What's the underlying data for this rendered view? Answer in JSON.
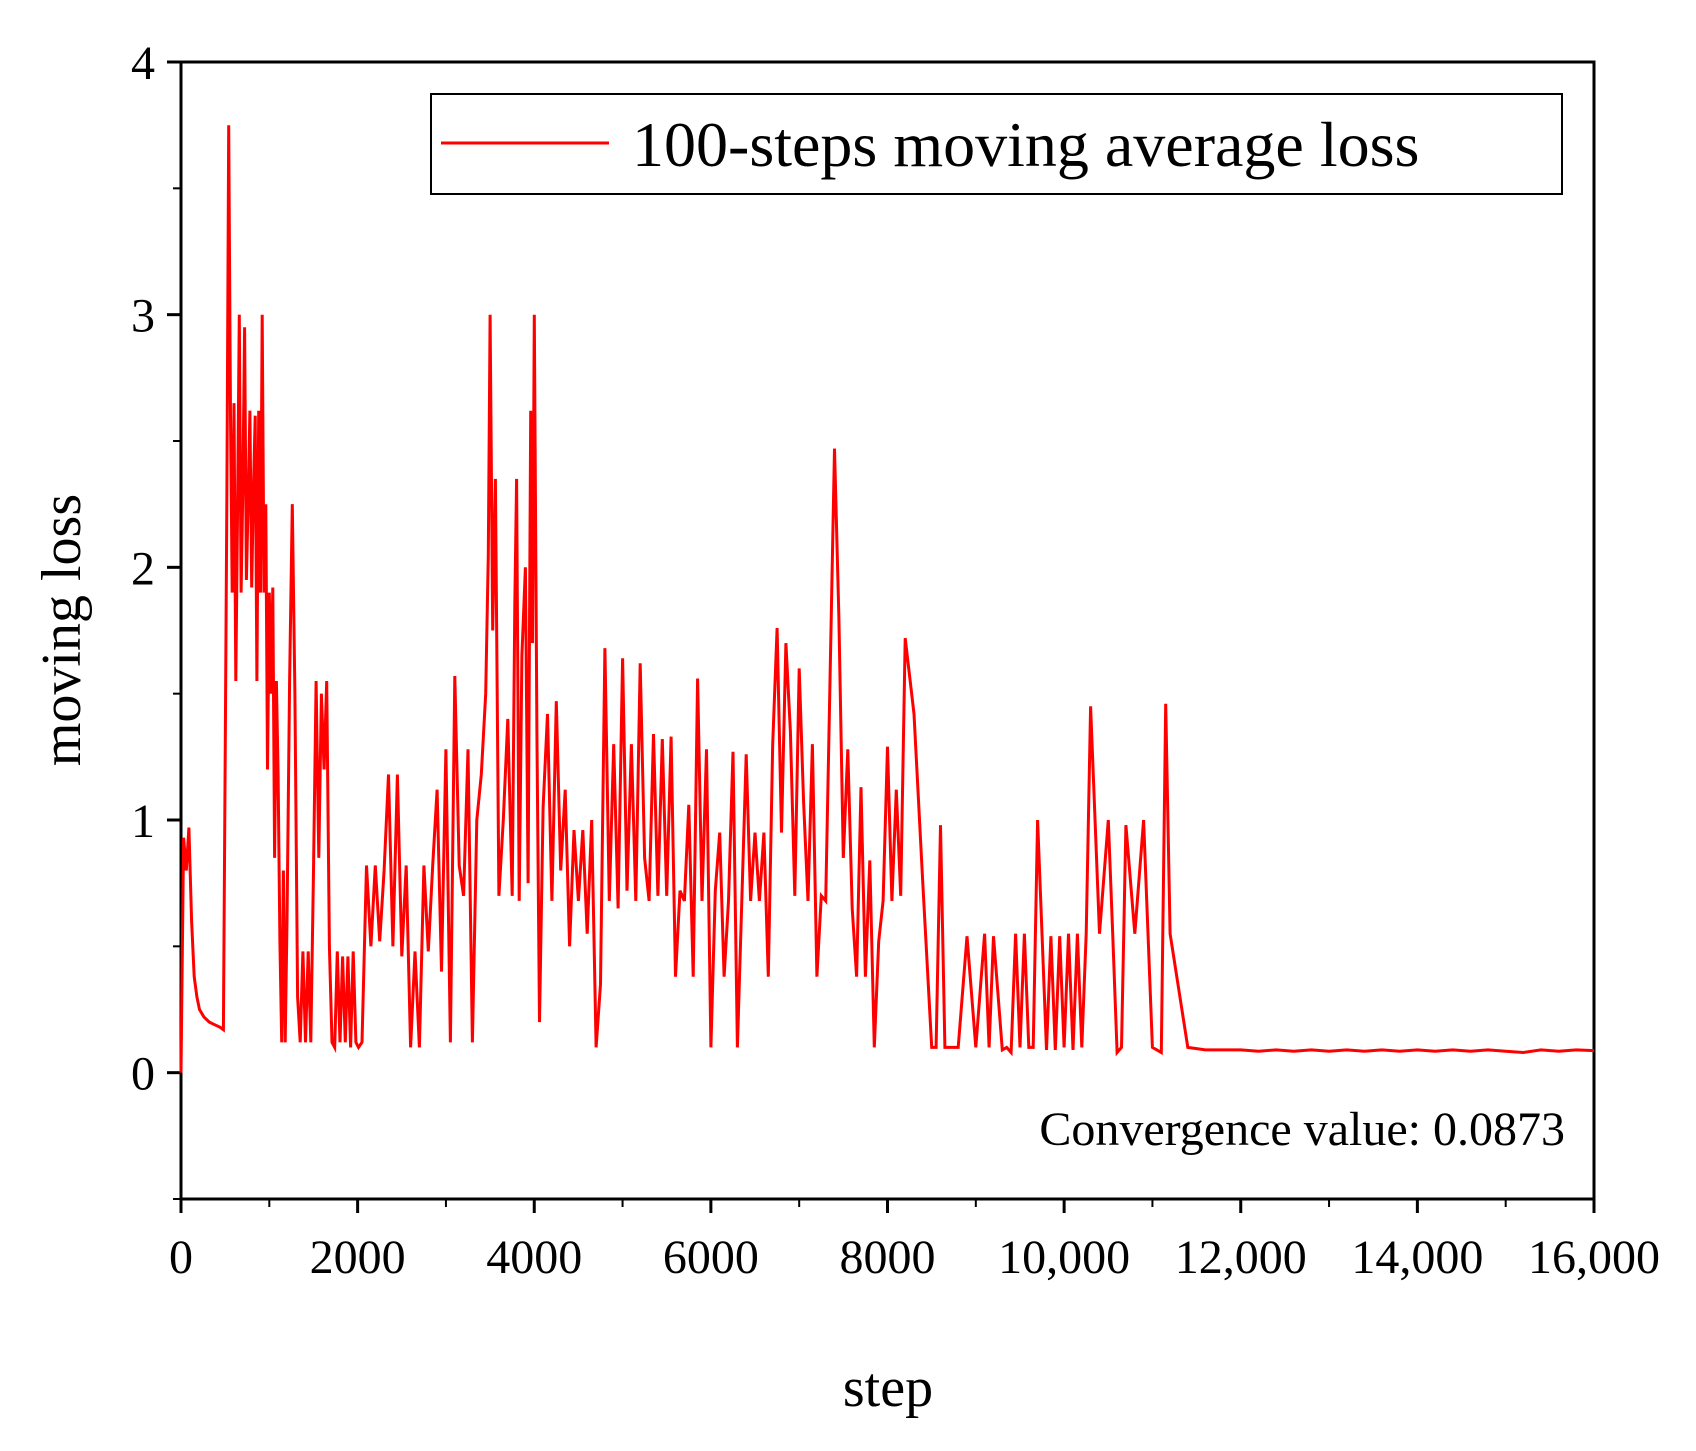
{
  "chart_data": {
    "type": "line",
    "xlabel": "step",
    "ylabel": "moving loss",
    "xlim": [
      0,
      16000
    ],
    "ylim": [
      -0.5,
      4
    ],
    "x_ticks": [
      0,
      2000,
      4000,
      6000,
      8000,
      10000,
      12000,
      14000,
      16000
    ],
    "x_tick_labels": [
      "0",
      "2000",
      "4000",
      "6000",
      "8000",
      "10,000",
      "12,000",
      "14,000",
      "16,000"
    ],
    "y_ticks": [
      0,
      1,
      2,
      3,
      4
    ],
    "y_tick_labels": [
      "0",
      "1",
      "2",
      "3",
      "4"
    ],
    "grid": false,
    "legend": {
      "position": "top-right"
    },
    "annotation": "Convergence value: 0.0873",
    "series": [
      {
        "name": "100-steps moving average loss",
        "color": "#ff0000",
        "x": [
          0,
          30,
          60,
          90,
          120,
          150,
          180,
          210,
          260,
          320,
          380,
          440,
          480,
          500,
          520,
          540,
          560,
          580,
          600,
          620,
          640,
          660,
          680,
          700,
          720,
          740,
          760,
          780,
          800,
          820,
          840,
          860,
          880,
          900,
          920,
          940,
          960,
          980,
          1000,
          1020,
          1040,
          1060,
          1080,
          1100,
          1120,
          1140,
          1160,
          1180,
          1200,
          1230,
          1260,
          1290,
          1320,
          1350,
          1380,
          1410,
          1440,
          1470,
          1500,
          1530,
          1560,
          1590,
          1620,
          1650,
          1680,
          1710,
          1740,
          1770,
          1800,
          1830,
          1860,
          1890,
          1920,
          1950,
          1980,
          2010,
          2050,
          2100,
          2150,
          2200,
          2250,
          2300,
          2350,
          2400,
          2450,
          2500,
          2550,
          2600,
          2650,
          2700,
          2750,
          2800,
          2850,
          2900,
          2950,
          3000,
          3050,
          3100,
          3150,
          3200,
          3250,
          3300,
          3350,
          3400,
          3450,
          3480,
          3500,
          3530,
          3560,
          3600,
          3650,
          3700,
          3750,
          3780,
          3800,
          3830,
          3860,
          3900,
          3930,
          3960,
          3980,
          4000,
          4030,
          4060,
          4100,
          4150,
          4200,
          4250,
          4300,
          4350,
          4400,
          4450,
          4500,
          4550,
          4600,
          4650,
          4700,
          4750,
          4800,
          4850,
          4900,
          4950,
          5000,
          5050,
          5100,
          5150,
          5200,
          5250,
          5300,
          5350,
          5400,
          5450,
          5500,
          5550,
          5600,
          5650,
          5700,
          5750,
          5800,
          5850,
          5900,
          5950,
          6000,
          6050,
          6100,
          6150,
          6200,
          6250,
          6300,
          6350,
          6400,
          6450,
          6500,
          6550,
          6600,
          6650,
          6700,
          6750,
          6800,
          6850,
          6900,
          6950,
          7000,
          7050,
          7100,
          7150,
          7200,
          7250,
          7300,
          7350,
          7400,
          7450,
          7500,
          7550,
          7600,
          7650,
          7700,
          7750,
          7800,
          7850,
          7900,
          7950,
          8000,
          8050,
          8100,
          8150,
          8200,
          8300,
          8400,
          8500,
          8550,
          8600,
          8650,
          8700,
          8750,
          8800,
          8900,
          9000,
          9100,
          9150,
          9200,
          9300,
          9350,
          9400,
          9450,
          9500,
          9550,
          9600,
          9650,
          9700,
          9750,
          9800,
          9850,
          9900,
          9950,
          10000,
          10050,
          10100,
          10150,
          10200,
          10250,
          10300,
          10400,
          10500,
          10550,
          10600,
          10650,
          10700,
          10800,
          10900,
          11000,
          11050,
          11100,
          11150,
          11200,
          11400,
          11600,
          11800,
          12000,
          12200,
          12400,
          12600,
          12800,
          13000,
          13200,
          13400,
          13600,
          13800,
          14000,
          14200,
          14400,
          14600,
          14800,
          15000,
          15200,
          15400,
          15600,
          15800,
          16000
        ],
        "y": [
          0.0,
          0.93,
          0.8,
          0.97,
          0.6,
          0.38,
          0.3,
          0.25,
          0.22,
          0.2,
          0.19,
          0.18,
          0.17,
          1.25,
          2.3,
          3.75,
          2.6,
          1.9,
          2.65,
          1.55,
          2.2,
          3.0,
          1.9,
          2.3,
          2.95,
          1.95,
          2.25,
          2.62,
          1.92,
          2.3,
          2.6,
          1.55,
          2.62,
          1.9,
          3.0,
          1.9,
          2.25,
          1.2,
          1.9,
          1.5,
          1.92,
          0.85,
          1.55,
          1.18,
          0.52,
          0.12,
          0.8,
          0.12,
          0.6,
          1.55,
          2.25,
          1.5,
          0.3,
          0.12,
          0.48,
          0.12,
          0.48,
          0.12,
          0.8,
          1.55,
          0.85,
          1.5,
          1.2,
          1.55,
          0.5,
          0.12,
          0.1,
          0.48,
          0.12,
          0.46,
          0.12,
          0.46,
          0.1,
          0.48,
          0.12,
          0.1,
          0.12,
          0.82,
          0.5,
          0.82,
          0.52,
          0.8,
          1.18,
          0.5,
          1.18,
          0.46,
          0.82,
          0.1,
          0.48,
          0.1,
          0.82,
          0.48,
          0.82,
          1.12,
          0.4,
          1.28,
          0.12,
          1.57,
          0.82,
          0.7,
          1.28,
          0.12,
          1.0,
          1.18,
          1.5,
          2.05,
          3.0,
          1.75,
          2.35,
          0.7,
          1.0,
          1.4,
          0.7,
          1.85,
          2.35,
          0.68,
          1.65,
          2.0,
          0.75,
          2.62,
          1.7,
          3.0,
          1.35,
          0.2,
          1.05,
          1.42,
          0.68,
          1.47,
          0.8,
          1.12,
          0.5,
          0.96,
          0.68,
          0.96,
          0.55,
          1.0,
          0.1,
          0.35,
          1.68,
          0.68,
          1.3,
          0.65,
          1.64,
          0.72,
          1.3,
          0.68,
          1.62,
          0.85,
          0.68,
          1.34,
          0.7,
          1.32,
          0.7,
          1.33,
          0.38,
          0.72,
          0.68,
          1.06,
          0.38,
          1.56,
          0.68,
          1.28,
          0.1,
          0.72,
          0.95,
          0.38,
          0.68,
          1.27,
          0.1,
          0.68,
          1.26,
          0.68,
          0.95,
          0.68,
          0.95,
          0.38,
          1.3,
          1.76,
          0.95,
          1.7,
          1.35,
          0.7,
          1.6,
          1.07,
          0.68,
          1.3,
          0.38,
          0.7,
          0.68,
          1.57,
          2.47,
          1.8,
          0.85,
          1.28,
          0.65,
          0.38,
          1.13,
          0.38,
          0.84,
          0.1,
          0.52,
          0.68,
          1.29,
          0.68,
          1.12,
          0.7,
          1.72,
          1.42,
          0.75,
          0.1,
          0.1,
          0.98,
          0.1,
          0.1,
          0.1,
          0.1,
          0.54,
          0.1,
          0.55,
          0.1,
          0.54,
          0.09,
          0.1,
          0.08,
          0.55,
          0.1,
          0.55,
          0.1,
          0.1,
          1.0,
          0.55,
          0.09,
          0.54,
          0.09,
          0.54,
          0.1,
          0.55,
          0.09,
          0.55,
          0.1,
          0.55,
          1.45,
          0.55,
          1.0,
          0.55,
          0.08,
          0.1,
          0.98,
          0.55,
          1.0,
          0.1,
          0.09,
          0.08,
          1.46,
          0.55,
          0.1,
          0.09,
          0.09,
          0.09,
          0.085,
          0.09,
          0.085,
          0.09,
          0.085,
          0.09,
          0.085,
          0.09,
          0.085,
          0.09,
          0.085,
          0.09,
          0.085,
          0.09,
          0.085,
          0.08,
          0.09,
          0.085,
          0.09,
          0.0873
        ]
      }
    ]
  }
}
